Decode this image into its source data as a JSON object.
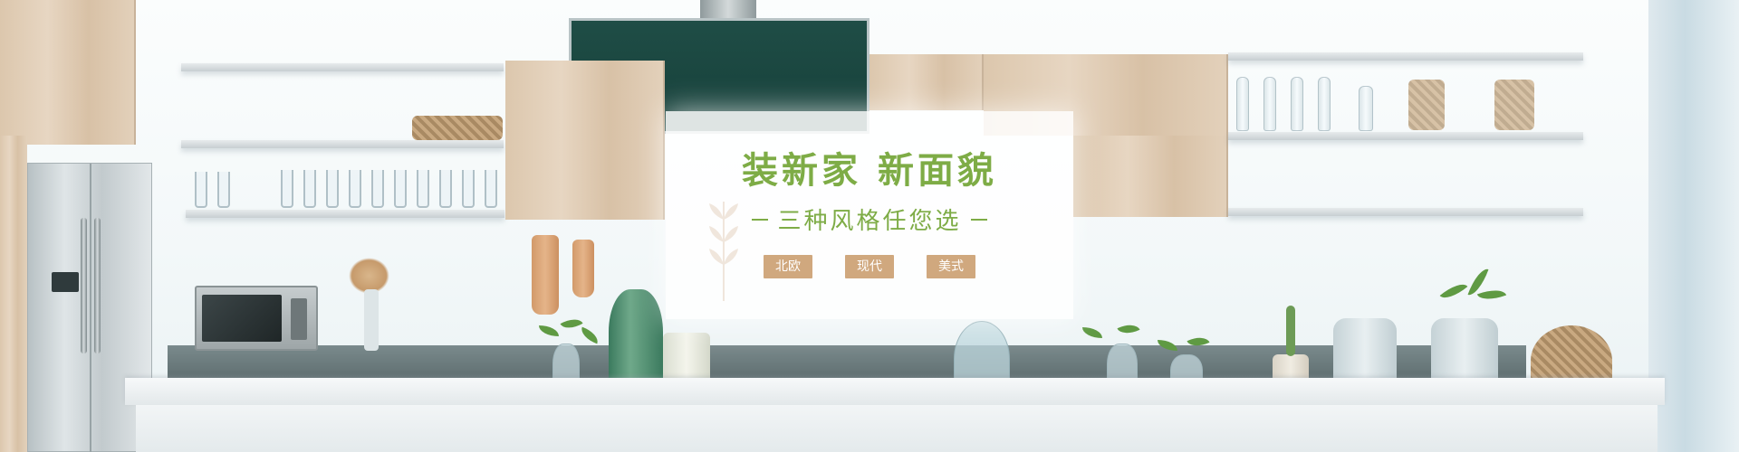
{
  "banner": {
    "title": "装新家 新面貌",
    "subtitle": "三种风格任您选",
    "styles": [
      {
        "label": "北欧"
      },
      {
        "label": "现代"
      },
      {
        "label": "美式"
      }
    ]
  },
  "colors": {
    "accent_green": "#7eac46",
    "tag_background": "#d0a87e",
    "tag_text": "#ffffff"
  },
  "icons": [
    "refrigerator-icon",
    "range-hood-icon",
    "plant-vase-icon",
    "cutting-board-icon",
    "microwave-icon"
  ]
}
